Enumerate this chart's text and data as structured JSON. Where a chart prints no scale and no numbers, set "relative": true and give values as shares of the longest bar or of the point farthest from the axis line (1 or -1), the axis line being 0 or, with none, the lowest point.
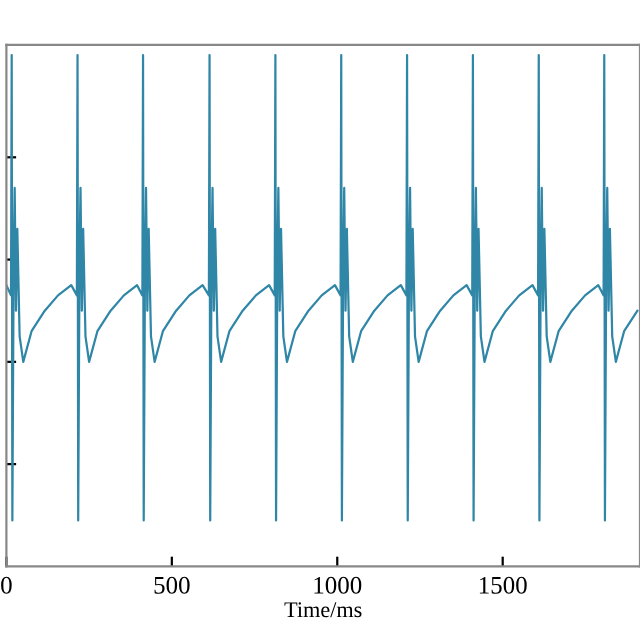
{
  "chart_data": {
    "type": "line",
    "xlabel": "Time/ms",
    "relative": true,
    "xlim": [
      0,
      1915
    ],
    "xticks": [
      0,
      500,
      1000,
      1500
    ],
    "tick_labels": "x",
    "grid": false,
    "line_style": "solid",
    "marker": "none",
    "x": [
      0,
      14,
      16,
      18,
      22,
      25,
      29,
      33,
      40,
      51,
      76,
      116,
      156,
      196,
      213,
      215,
      217,
      221,
      224,
      228,
      232,
      239,
      250,
      275,
      315,
      355,
      395,
      411,
      413,
      415,
      419,
      422,
      426,
      430,
      437,
      448,
      473,
      513,
      553,
      593,
      612,
      614,
      616,
      620,
      623,
      627,
      631,
      638,
      649,
      674,
      714,
      754,
      794,
      811,
      813,
      815,
      819,
      822,
      826,
      830,
      837,
      848,
      873,
      913,
      953,
      993,
      1010,
      1012,
      1014,
      1018,
      1021,
      1025,
      1029,
      1036,
      1047,
      1072,
      1112,
      1152,
      1192,
      1209,
      1211,
      1213,
      1217,
      1220,
      1224,
      1228,
      1235,
      1246,
      1271,
      1311,
      1351,
      1391,
      1408,
      1410,
      1412,
      1416,
      1419,
      1423,
      1427,
      1434,
      1445,
      1470,
      1510,
      1550,
      1590,
      1607,
      1609,
      1611,
      1615,
      1618,
      1622,
      1626,
      1633,
      1644,
      1669,
      1709,
      1749,
      1789,
      1805,
      1807,
      1809,
      1813,
      1816,
      1820,
      1824,
      1831,
      1842,
      1867,
      1907
    ],
    "series": [
      {
        "color": "#2f86a6",
        "values": [
          0.55,
          0.53,
          1.0,
          0.09,
          0.6,
          0.74,
          0.5,
          0.66,
          0.45,
          0.4,
          0.46,
          0.5,
          0.53,
          0.55,
          0.53,
          1.0,
          0.09,
          0.6,
          0.74,
          0.5,
          0.66,
          0.45,
          0.4,
          0.46,
          0.5,
          0.53,
          0.55,
          0.53,
          1.0,
          0.09,
          0.6,
          0.74,
          0.5,
          0.66,
          0.45,
          0.4,
          0.46,
          0.5,
          0.53,
          0.55,
          0.53,
          1.0,
          0.09,
          0.6,
          0.74,
          0.5,
          0.66,
          0.45,
          0.4,
          0.46,
          0.5,
          0.53,
          0.55,
          0.53,
          1.0,
          0.09,
          0.6,
          0.74,
          0.5,
          0.66,
          0.45,
          0.4,
          0.46,
          0.5,
          0.53,
          0.55,
          0.53,
          1.0,
          0.09,
          0.6,
          0.74,
          0.5,
          0.66,
          0.45,
          0.4,
          0.46,
          0.5,
          0.53,
          0.55,
          0.53,
          1.0,
          0.09,
          0.6,
          0.74,
          0.5,
          0.66,
          0.45,
          0.4,
          0.46,
          0.5,
          0.53,
          0.55,
          0.53,
          1.0,
          0.09,
          0.6,
          0.74,
          0.5,
          0.66,
          0.45,
          0.4,
          0.46,
          0.5,
          0.53,
          0.55,
          0.53,
          1.0,
          0.09,
          0.6,
          0.74,
          0.5,
          0.66,
          0.45,
          0.4,
          0.46,
          0.5,
          0.53,
          0.55,
          0.53,
          1.0,
          0.09,
          0.6,
          0.74,
          0.5,
          0.66,
          0.45,
          0.4,
          0.46,
          0.5
        ]
      }
    ]
  }
}
